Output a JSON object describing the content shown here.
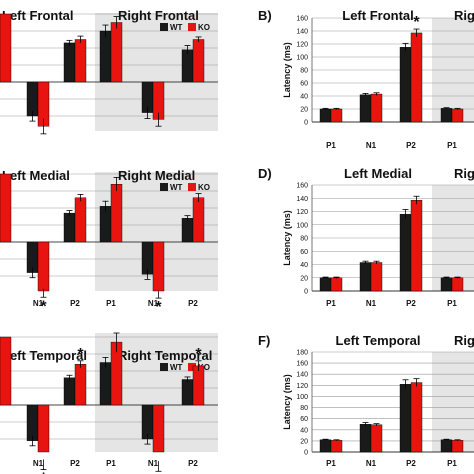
{
  "colors": {
    "wt": "#1a1a1a",
    "ko": "#e8140f",
    "shade": "#e5e5e5",
    "grid": "#9a9a9a",
    "axis": "#555555"
  },
  "legend": {
    "wt": "WT",
    "ko": "KO"
  },
  "chart_data": [
    {
      "type": "bar",
      "panel": "A",
      "regions": [
        "Left Frontal",
        "Right Frontal"
      ],
      "categories": [
        "P1",
        "N1",
        "P2",
        "P1",
        "N1",
        "P2"
      ],
      "series": [
        {
          "name": "WT",
          "values": [
            4.0,
            -2.0,
            2.3,
            3.0,
            -1.8,
            1.9
          ]
        },
        {
          "name": "KO",
          "values": [
            4.0,
            -2.6,
            2.5,
            3.5,
            -2.2,
            2.5
          ]
        }
      ],
      "errors": [
        [
          0.0,
          0.3,
          0.15,
          0.35,
          0.35,
          0.25
        ],
        [
          0.0,
          0.45,
          0.2,
          0.35,
          0.4,
          0.15
        ]
      ],
      "significance": [],
      "legend_location": "top-right",
      "grid": true
    },
    {
      "type": "bar",
      "panel": "B",
      "regions": [
        "Left Frontal",
        "Right Frontal"
      ],
      "categories": [
        "P1",
        "N1",
        "P2",
        "P1",
        "N1",
        "P2"
      ],
      "series": [
        {
          "name": "WT",
          "values": [
            20,
            42,
            115,
            21,
            null,
            null
          ]
        },
        {
          "name": "KO",
          "values": [
            20,
            43,
            137,
            20,
            null,
            null
          ]
        }
      ],
      "errors": [
        [
          1,
          2,
          6,
          1,
          null,
          null
        ],
        [
          1,
          2,
          6,
          1,
          null,
          null
        ]
      ],
      "significance": [
        {
          "index": 2,
          "mark": "*"
        }
      ],
      "ylabel": "Latency (ms)",
      "ylim": [
        0,
        160
      ],
      "yticks": [
        0,
        20,
        40,
        60,
        80,
        100,
        120,
        140,
        160
      ],
      "grid": true
    },
    {
      "type": "bar",
      "panel": "C",
      "regions": [
        "Left Medial",
        "Right Medial"
      ],
      "categories": [
        "P1",
        "N1",
        "P2",
        "P1",
        "N1",
        "P2"
      ],
      "series": [
        {
          "name": "WT",
          "values": [
            4.0,
            -1.8,
            1.7,
            2.1,
            -1.9,
            1.4
          ]
        },
        {
          "name": "KO",
          "values": [
            4.0,
            -3.0,
            2.6,
            3.4,
            -3.1,
            2.6
          ]
        }
      ],
      "errors": [
        [
          0.0,
          0.3,
          0.15,
          0.3,
          0.3,
          0.15
        ],
        [
          0.0,
          0.25,
          0.2,
          0.4,
          0.2,
          0.25
        ]
      ],
      "significance": [
        {
          "index": 1,
          "mark": "*"
        },
        {
          "index": 4,
          "mark": "*"
        }
      ],
      "legend_location": "top-right",
      "grid": true
    },
    {
      "type": "bar",
      "panel": "D",
      "regions": [
        "Left Medial",
        "Right Medial"
      ],
      "categories": [
        "P1",
        "N1",
        "P2",
        "P1",
        "N1",
        "P2"
      ],
      "series": [
        {
          "name": "WT",
          "values": [
            20,
            43,
            116,
            20,
            null,
            null
          ]
        },
        {
          "name": "KO",
          "values": [
            20,
            43,
            137,
            20,
            null,
            null
          ]
        }
      ],
      "errors": [
        [
          1,
          2,
          7,
          1,
          null,
          null
        ],
        [
          1,
          2,
          6,
          1,
          null,
          null
        ]
      ],
      "significance": [],
      "ylabel": "Latency (ms)",
      "ylim": [
        0,
        160
      ],
      "yticks": [
        0,
        20,
        40,
        60,
        80,
        100,
        120,
        140,
        160
      ],
      "grid": true
    },
    {
      "type": "bar",
      "panel": "E",
      "regions": [
        "Left Temporal",
        "Right Temporal"
      ],
      "categories": [
        "P1",
        "N1",
        "P2",
        "P1",
        "N1",
        "P2"
      ],
      "series": [
        {
          "name": "WT",
          "values": [
            4.0,
            -2.1,
            1.6,
            2.5,
            -2.0,
            1.5
          ]
        },
        {
          "name": "KO",
          "values": [
            4.0,
            -3.5,
            2.4,
            3.7,
            -3.6,
            2.3
          ]
        }
      ],
      "errors": [
        [
          0.0,
          0.3,
          0.15,
          0.3,
          0.3,
          0.15
        ],
        [
          0.0,
          0.3,
          0.2,
          0.6,
          0.3,
          0.3
        ]
      ],
      "significance": [
        {
          "index": 1,
          "mark": "*"
        },
        {
          "index": 2,
          "mark": "*"
        },
        {
          "index": 4,
          "mark": "*"
        },
        {
          "index": 5,
          "mark": "*"
        }
      ],
      "legend_location": "top-right",
      "grid": true
    },
    {
      "type": "bar",
      "panel": "F",
      "regions": [
        "Left Temporal",
        "Right Temporal"
      ],
      "categories": [
        "P1",
        "N1",
        "P2",
        "P1",
        "N1",
        "P2"
      ],
      "series": [
        {
          "name": "WT",
          "values": [
            22,
            50,
            122,
            22,
            null,
            null
          ]
        },
        {
          "name": "KO",
          "values": [
            21,
            49,
            125,
            21,
            null,
            null
          ]
        }
      ],
      "errors": [
        [
          1,
          3,
          8,
          1,
          null,
          null
        ],
        [
          1,
          2,
          7,
          1,
          null,
          null
        ]
      ],
      "significance": [],
      "ylabel": "Latency (ms)",
      "ylim": [
        0,
        180
      ],
      "yticks": [
        0,
        20,
        40,
        60,
        80,
        100,
        120,
        140,
        160,
        180
      ],
      "grid": true
    }
  ],
  "panel_labels": {
    "B": "B)",
    "D": "D)",
    "F": "F)"
  },
  "cropped_right_labels": {
    "B": "Righ",
    "D": "Rig",
    "F": "Righ"
  }
}
